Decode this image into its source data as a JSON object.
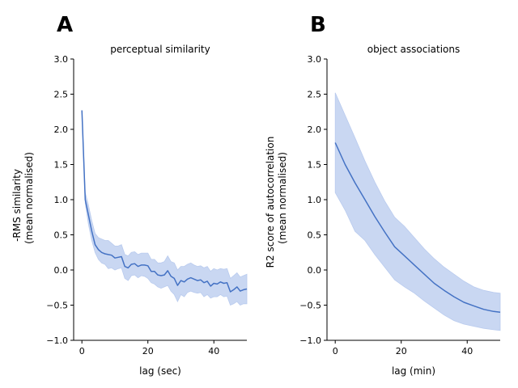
{
  "chart_data": [
    {
      "panel_label": "A",
      "type": "line",
      "title": "perceptual similarity",
      "xlabel": "lag (sec)",
      "ylabel_lines": [
        "-RMS similarity",
        "(mean normalised)"
      ],
      "xlim": [
        -2.5,
        50
      ],
      "ylim": [
        -1.0,
        3.0
      ],
      "xticks": [
        0,
        20,
        40
      ],
      "yticks": [
        -1.0,
        -0.5,
        0.0,
        0.5,
        1.0,
        1.5,
        2.0,
        2.5,
        3.0
      ],
      "series": [
        {
          "color": "#4472c4",
          "band_color": "#c9d7f2",
          "x": [
            0,
            1,
            2,
            3,
            4,
            5,
            6,
            7,
            8,
            9,
            10,
            11,
            12,
            13,
            14,
            15,
            16,
            17,
            18,
            19,
            20,
            21,
            22,
            23,
            24,
            25,
            26,
            27,
            28,
            29,
            30,
            31,
            32,
            33,
            34,
            35,
            36,
            37,
            38,
            39,
            40,
            41,
            42,
            43,
            44,
            45,
            46,
            47,
            48,
            49,
            50
          ],
          "y": [
            2.27,
            1.0,
            0.78,
            0.55,
            0.36,
            0.29,
            0.25,
            0.23,
            0.22,
            0.21,
            0.17,
            0.18,
            0.19,
            0.05,
            0.03,
            0.08,
            0.09,
            0.05,
            0.07,
            0.07,
            0.06,
            -0.02,
            -0.02,
            -0.07,
            -0.08,
            -0.07,
            -0.01,
            -0.09,
            -0.12,
            -0.22,
            -0.15,
            -0.17,
            -0.13,
            -0.11,
            -0.13,
            -0.15,
            -0.14,
            -0.18,
            -0.16,
            -0.23,
            -0.19,
            -0.2,
            -0.17,
            -0.19,
            -0.18,
            -0.31,
            -0.28,
            -0.24,
            -0.3,
            -0.28,
            -0.27
          ],
          "lower": [
            2.27,
            0.95,
            0.65,
            0.42,
            0.25,
            0.15,
            0.1,
            0.08,
            0.02,
            0.03,
            0.0,
            0.02,
            0.03,
            -0.12,
            -0.15,
            -0.08,
            -0.07,
            -0.11,
            -0.08,
            -0.09,
            -0.12,
            -0.18,
            -0.2,
            -0.24,
            -0.26,
            -0.24,
            -0.22,
            -0.3,
            -0.35,
            -0.45,
            -0.35,
            -0.38,
            -0.32,
            -0.3,
            -0.32,
            -0.33,
            -0.32,
            -0.38,
            -0.35,
            -0.4,
            -0.38,
            -0.38,
            -0.35,
            -0.38,
            -0.37,
            -0.5,
            -0.48,
            -0.45,
            -0.5,
            -0.48,
            -0.48
          ],
          "upper": [
            2.27,
            1.1,
            0.92,
            0.7,
            0.52,
            0.46,
            0.44,
            0.42,
            0.42,
            0.38,
            0.34,
            0.34,
            0.36,
            0.22,
            0.2,
            0.25,
            0.26,
            0.22,
            0.24,
            0.24,
            0.24,
            0.15,
            0.15,
            0.1,
            0.1,
            0.12,
            0.2,
            0.12,
            0.1,
            0.0,
            0.05,
            0.05,
            0.08,
            0.1,
            0.07,
            0.05,
            0.06,
            0.03,
            0.05,
            -0.02,
            0.02,
            0.0,
            0.02,
            0.01,
            0.02,
            -0.12,
            -0.08,
            -0.04,
            -0.1,
            -0.08,
            -0.06
          ]
        }
      ]
    },
    {
      "panel_label": "B",
      "type": "line",
      "title": "object associations",
      "xlabel": "lag (min)",
      "ylabel_lines": [
        "R2 score of autocorrelation",
        "(mean normalised)"
      ],
      "xlim": [
        -2.5,
        50
      ],
      "ylim": [
        -1.0,
        3.0
      ],
      "xticks": [
        0,
        20,
        40
      ],
      "yticks": [
        -1.0,
        -0.5,
        0.0,
        0.5,
        1.0,
        1.5,
        2.0,
        2.5,
        3.0
      ],
      "series": [
        {
          "color": "#4472c4",
          "band_color": "#c9d7f2",
          "x": [
            0,
            3,
            6,
            9,
            12,
            15,
            18,
            21,
            24,
            27,
            30,
            33,
            36,
            39,
            42,
            45,
            48,
            50
          ],
          "y": [
            1.81,
            1.5,
            1.24,
            1.0,
            0.76,
            0.54,
            0.33,
            0.2,
            0.07,
            -0.06,
            -0.19,
            -0.29,
            -0.38,
            -0.46,
            -0.51,
            -0.56,
            -0.59,
            -0.6
          ],
          "lower": [
            1.1,
            0.85,
            0.55,
            0.42,
            0.22,
            0.04,
            -0.14,
            -0.24,
            -0.33,
            -0.44,
            -0.54,
            -0.64,
            -0.72,
            -0.77,
            -0.8,
            -0.83,
            -0.85,
            -0.86
          ],
          "upper": [
            2.52,
            2.2,
            1.88,
            1.55,
            1.25,
            0.98,
            0.75,
            0.62,
            0.46,
            0.3,
            0.16,
            0.04,
            -0.06,
            -0.16,
            -0.24,
            -0.29,
            -0.32,
            -0.33
          ]
        }
      ]
    }
  ]
}
